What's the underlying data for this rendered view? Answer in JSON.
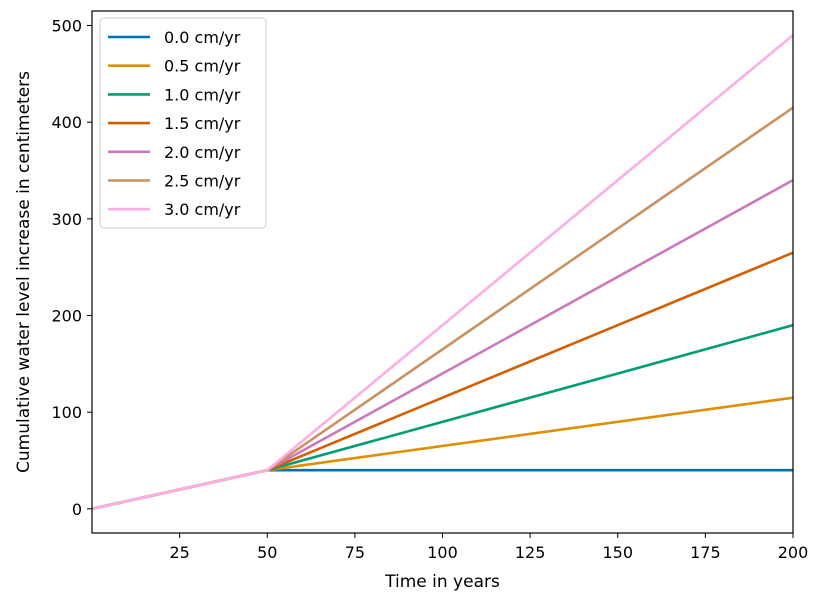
{
  "chart_data": {
    "type": "line",
    "title": "",
    "xlabel": "Time in years",
    "ylabel": "Cumulative water level increase in centimeters",
    "xlim": [
      0,
      200
    ],
    "ylim": [
      -25,
      515
    ],
    "xticks": [
      25,
      50,
      75,
      100,
      125,
      150,
      175,
      200
    ],
    "yticks": [
      0,
      100,
      200,
      300,
      400,
      500
    ],
    "grid": false,
    "legend_position": "top-left",
    "series": [
      {
        "name": "0.0 cm/yr",
        "color": "#0173b2",
        "x": [
          0,
          50,
          200
        ],
        "y": [
          0,
          40,
          40
        ]
      },
      {
        "name": "0.5 cm/yr",
        "color": "#de8f05",
        "x": [
          0,
          50,
          200
        ],
        "y": [
          0,
          40,
          115
        ]
      },
      {
        "name": "1.0 cm/yr",
        "color": "#029e73",
        "x": [
          0,
          50,
          200
        ],
        "y": [
          0,
          40,
          190
        ]
      },
      {
        "name": "1.5 cm/yr",
        "color": "#d55e00",
        "x": [
          0,
          50,
          200
        ],
        "y": [
          0,
          40,
          265
        ]
      },
      {
        "name": "2.0 cm/yr",
        "color": "#cc78bc",
        "x": [
          0,
          50,
          200
        ],
        "y": [
          0,
          40,
          340
        ]
      },
      {
        "name": "2.5 cm/yr",
        "color": "#ca9161",
        "x": [
          0,
          50,
          200
        ],
        "y": [
          0,
          40,
          415
        ]
      },
      {
        "name": "3.0 cm/yr",
        "color": "#fbafe4",
        "x": [
          0,
          50,
          200
        ],
        "y": [
          0,
          40,
          490
        ]
      }
    ]
  }
}
